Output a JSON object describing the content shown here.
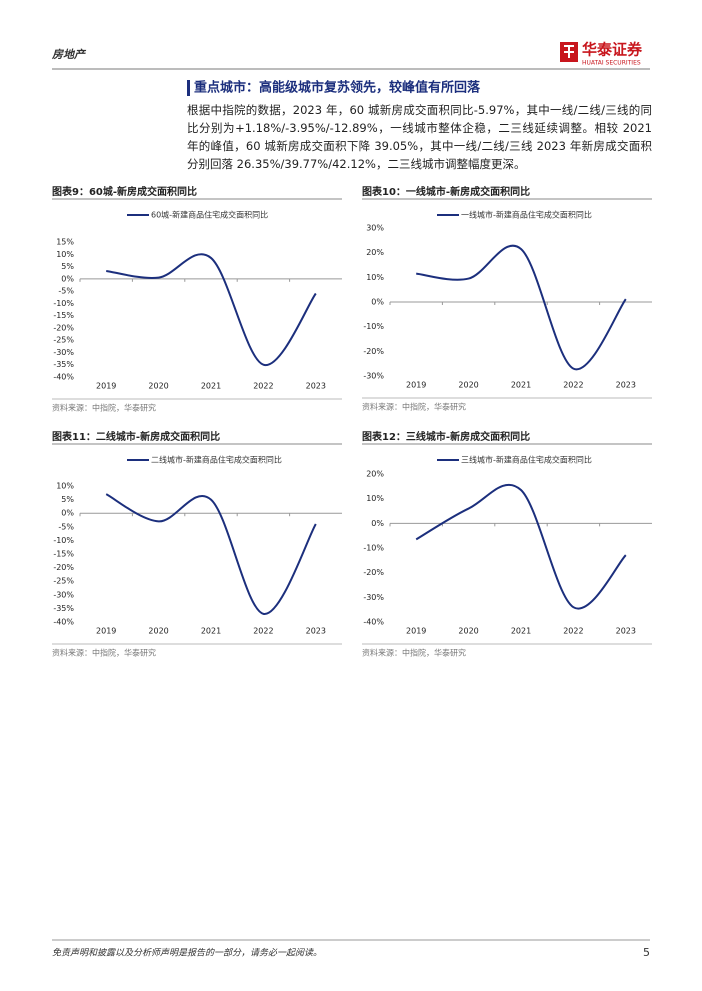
{
  "header": {
    "section": "房地产",
    "logo": "华泰证券",
    "logo_en": "HUATAI SECURITIES"
  },
  "heading": "重点城市：高能级城市复苏领先，较峰值有所回落",
  "paragraph": "根据中指院的数据，2023 年，60 城新房成交面积同比-5.97%，其中一线/二线/三线的同比分别为+1.18%/-3.95%/-12.89%，一线城市整体企稳，二三线延续调整。相较 2021 年的峰值，60 城新房成交面积下降 39.05%，其中一线/二线/三线 2023 年新房成交面积分别回落 26.35%/39.77%/42.12%，二三线城市调整幅度更深。",
  "chart_data": [
    {
      "type": "line",
      "title": "图表9：60城-新房成交面积同比",
      "source": "资料来源：中指院，华泰研究",
      "categories": [
        "2019",
        "2020",
        "2021",
        "2022",
        "2023"
      ],
      "series": [
        {
          "name": "60城-新建商品住宅成交面积同比",
          "color": "#1c2f7d",
          "values": [
            3.2,
            0.5,
            8.5,
            -35,
            -5.97
          ]
        }
      ],
      "ylim": [
        -40,
        15
      ],
      "yticks": [
        {
          "value": -40,
          "label": "-40%"
        },
        {
          "value": -35,
          "label": "-35%"
        },
        {
          "value": -30,
          "label": "-30%"
        },
        {
          "value": -25,
          "label": "-25%"
        },
        {
          "value": -20,
          "label": "-20%"
        },
        {
          "value": -15,
          "label": "-15%"
        },
        {
          "value": -10,
          "label": "-10%"
        },
        {
          "value": -5,
          "label": "-5%"
        },
        {
          "value": 0,
          "label": "0%"
        },
        {
          "value": 5,
          "label": "5%"
        },
        {
          "value": 10,
          "label": "10%"
        },
        {
          "value": 15,
          "label": "15%"
        }
      ]
    },
    {
      "type": "line",
      "title": "图表10：一线城市-新房成交面积同比",
      "source": "资料来源：中指院，华泰研究",
      "categories": [
        "2019",
        "2020",
        "2021",
        "2022",
        "2023"
      ],
      "series": [
        {
          "name": "一线城市-新建商品住宅成交面积同比",
          "color": "#1c2f7d",
          "values": [
            11.5,
            9.5,
            21.5,
            -27,
            1.18
          ]
        }
      ],
      "ylim": [
        -30,
        30
      ],
      "yticks": [
        {
          "value": -30,
          "label": "-30%"
        },
        {
          "value": -20,
          "label": "-20%"
        },
        {
          "value": -10,
          "label": "-10%"
        },
        {
          "value": 0,
          "label": "0%"
        },
        {
          "value": 10,
          "label": "10%"
        },
        {
          "value": 20,
          "label": "20%"
        },
        {
          "value": 30,
          "label": "30%"
        }
      ]
    },
    {
      "type": "line",
      "title": "图表11：二线城市-新房成交面积同比",
      "source": "资料来源：中指院，华泰研究",
      "categories": [
        "2019",
        "2020",
        "2021",
        "2022",
        "2023"
      ],
      "series": [
        {
          "name": "二线城市-新建商品住宅成交面积同比",
          "color": "#1c2f7d",
          "values": [
            7,
            -3,
            5,
            -37,
            -3.95
          ]
        }
      ],
      "ylim": [
        -40,
        10
      ],
      "yticks": [
        {
          "value": -40,
          "label": "-40%"
        },
        {
          "value": -35,
          "label": "-35%"
        },
        {
          "value": -30,
          "label": "-30%"
        },
        {
          "value": -25,
          "label": "-25%"
        },
        {
          "value": -20,
          "label": "-20%"
        },
        {
          "value": -15,
          "label": "-15%"
        },
        {
          "value": -10,
          "label": "-10%"
        },
        {
          "value": -5,
          "label": "-5%"
        },
        {
          "value": 0,
          "label": "0%"
        },
        {
          "value": 5,
          "label": "5%"
        },
        {
          "value": 10,
          "label": "10%"
        }
      ]
    },
    {
      "type": "line",
      "title": "图表12：三线城市-新房成交面积同比",
      "source": "资料来源：中指院，华泰研究",
      "categories": [
        "2019",
        "2020",
        "2021",
        "2022",
        "2023"
      ],
      "series": [
        {
          "name": "三线城市-新建商品住宅成交面积同比",
          "color": "#1c2f7d",
          "values": [
            -6.5,
            6,
            13.5,
            -34,
            -12.89
          ]
        }
      ],
      "ylim": [
        -40,
        20
      ],
      "yticks": [
        {
          "value": -40,
          "label": "-40%"
        },
        {
          "value": -30,
          "label": "-30%"
        },
        {
          "value": -20,
          "label": "-20%"
        },
        {
          "value": -10,
          "label": "-10%"
        },
        {
          "value": 0,
          "label": "0%"
        },
        {
          "value": 10,
          "label": "10%"
        },
        {
          "value": 20,
          "label": "20%"
        }
      ]
    }
  ],
  "footer": {
    "disclaimer": "免责声明和披露以及分析师声明是报告的一部分，请务必一起阅读。",
    "page": "5"
  }
}
